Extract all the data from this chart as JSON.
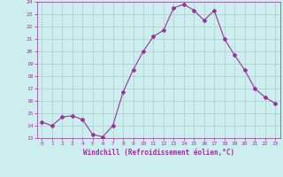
{
  "x": [
    0,
    1,
    2,
    3,
    4,
    5,
    6,
    7,
    8,
    9,
    10,
    11,
    12,
    13,
    14,
    15,
    16,
    17,
    18,
    19,
    20,
    21,
    22,
    23
  ],
  "y": [
    14.3,
    14.0,
    14.7,
    14.8,
    14.5,
    13.3,
    13.1,
    14.0,
    16.7,
    18.5,
    20.0,
    21.2,
    21.7,
    23.5,
    23.8,
    23.3,
    22.5,
    23.3,
    21.0,
    19.7,
    18.5,
    17.0,
    16.3,
    15.8
  ],
  "line_color": "#993399",
  "marker": "D",
  "markersize": 2,
  "linewidth": 0.8,
  "bg_color": "#cceeee",
  "grid_color": "#aacccc",
  "xlabel": "Windchill (Refroidissement éolien,°C)",
  "xlabel_color": "#993399",
  "tick_color": "#993399",
  "ylim": [
    13,
    24
  ],
  "xlim": [
    -0.5,
    23.5
  ],
  "yticks": [
    13,
    14,
    15,
    16,
    17,
    18,
    19,
    20,
    21,
    22,
    23,
    24
  ],
  "xticks": [
    0,
    1,
    2,
    3,
    4,
    5,
    6,
    7,
    8,
    9,
    10,
    11,
    12,
    13,
    14,
    15,
    16,
    17,
    18,
    19,
    20,
    21,
    22,
    23
  ]
}
